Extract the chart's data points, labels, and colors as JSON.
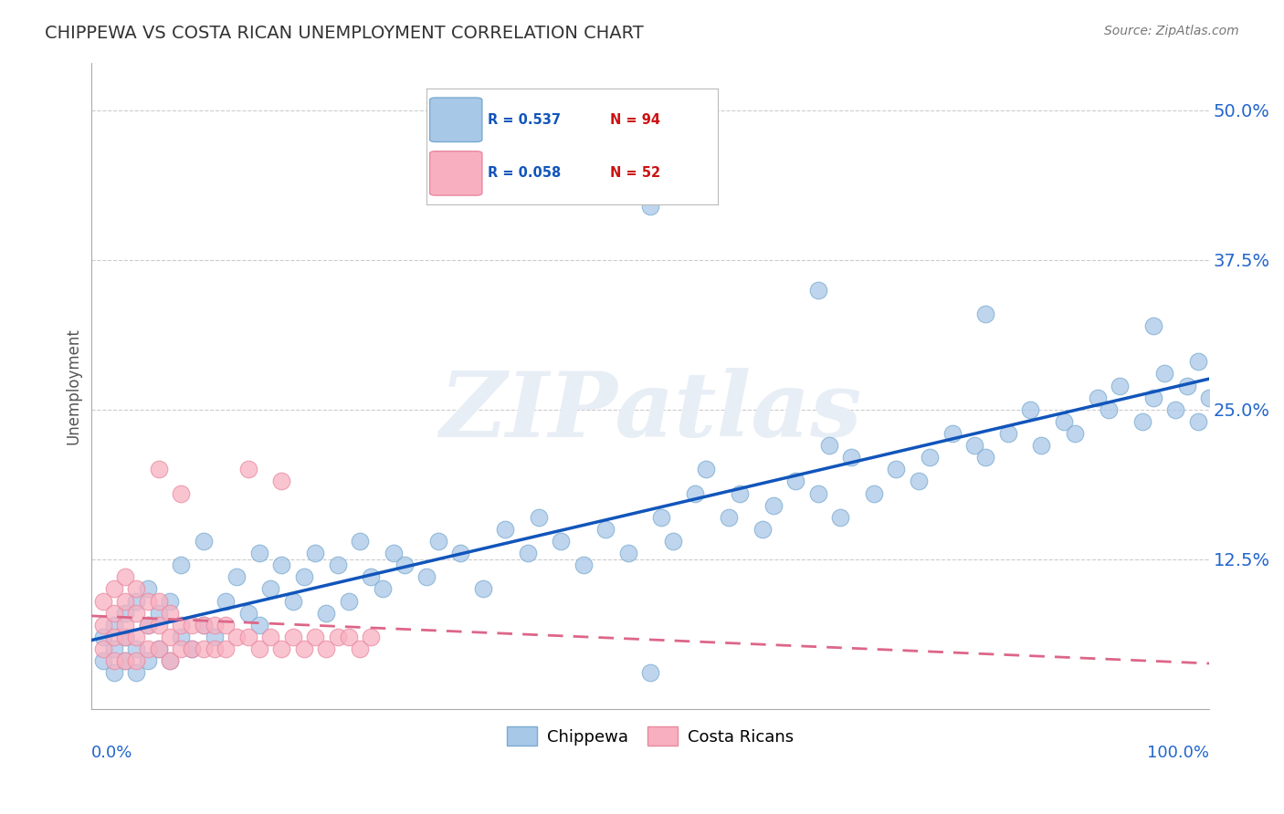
{
  "title": "CHIPPEWA VS COSTA RICAN UNEMPLOYMENT CORRELATION CHART",
  "source": "Source: ZipAtlas.com",
  "ylabel": "Unemployment",
  "chippewa_color": "#a8c8e8",
  "chippewa_edge": "#7aaad0",
  "costa_color": "#f8b0c0",
  "costa_edge": "#e888a0",
  "trend_blue": "#1155bb",
  "trend_pink": "#dd6688",
  "background": "#ffffff",
  "watermark_text": "ZIPatlas",
  "watermark_color": "#e8eef5",
  "chippewa_R": 0.537,
  "chippewa_N": 94,
  "costa_R": 0.058,
  "costa_N": 52,
  "chippewa_x": [
    0.01,
    0.01,
    0.02,
    0.02,
    0.02,
    0.03,
    0.03,
    0.03,
    0.04,
    0.04,
    0.04,
    0.05,
    0.05,
    0.05,
    0.06,
    0.06,
    0.07,
    0.07,
    0.08,
    0.08,
    0.09,
    0.1,
    0.1,
    0.11,
    0.12,
    0.13,
    0.14,
    0.15,
    0.15,
    0.16,
    0.17,
    0.18,
    0.19,
    0.2,
    0.21,
    0.22,
    0.23,
    0.24,
    0.25,
    0.26,
    0.27,
    0.28,
    0.3,
    0.31,
    0.33,
    0.35,
    0.37,
    0.39,
    0.4,
    0.42,
    0.44,
    0.46,
    0.48,
    0.5,
    0.51,
    0.52,
    0.54,
    0.55,
    0.57,
    0.58,
    0.6,
    0.61,
    0.63,
    0.65,
    0.66,
    0.67,
    0.68,
    0.7,
    0.72,
    0.74,
    0.75,
    0.77,
    0.79,
    0.8,
    0.82,
    0.84,
    0.85,
    0.87,
    0.88,
    0.9,
    0.91,
    0.92,
    0.94,
    0.95,
    0.96,
    0.97,
    0.98,
    0.99,
    0.99,
    1.0,
    0.5,
    0.65,
    0.8,
    0.95
  ],
  "chippewa_y": [
    0.04,
    0.06,
    0.03,
    0.05,
    0.07,
    0.04,
    0.06,
    0.08,
    0.03,
    0.05,
    0.09,
    0.04,
    0.07,
    0.1,
    0.05,
    0.08,
    0.04,
    0.09,
    0.06,
    0.12,
    0.05,
    0.07,
    0.14,
    0.06,
    0.09,
    0.11,
    0.08,
    0.07,
    0.13,
    0.1,
    0.12,
    0.09,
    0.11,
    0.13,
    0.08,
    0.12,
    0.09,
    0.14,
    0.11,
    0.1,
    0.13,
    0.12,
    0.11,
    0.14,
    0.13,
    0.1,
    0.15,
    0.13,
    0.16,
    0.14,
    0.12,
    0.15,
    0.13,
    0.03,
    0.16,
    0.14,
    0.18,
    0.2,
    0.16,
    0.18,
    0.15,
    0.17,
    0.19,
    0.18,
    0.22,
    0.16,
    0.21,
    0.18,
    0.2,
    0.19,
    0.21,
    0.23,
    0.22,
    0.21,
    0.23,
    0.25,
    0.22,
    0.24,
    0.23,
    0.26,
    0.25,
    0.27,
    0.24,
    0.26,
    0.28,
    0.25,
    0.27,
    0.24,
    0.29,
    0.26,
    0.42,
    0.35,
    0.33,
    0.32
  ],
  "costa_x": [
    0.01,
    0.01,
    0.01,
    0.02,
    0.02,
    0.02,
    0.02,
    0.03,
    0.03,
    0.03,
    0.03,
    0.03,
    0.04,
    0.04,
    0.04,
    0.04,
    0.05,
    0.05,
    0.05,
    0.06,
    0.06,
    0.06,
    0.07,
    0.07,
    0.07,
    0.08,
    0.08,
    0.09,
    0.09,
    0.1,
    0.1,
    0.11,
    0.11,
    0.12,
    0.12,
    0.13,
    0.14,
    0.15,
    0.16,
    0.17,
    0.18,
    0.19,
    0.2,
    0.21,
    0.22,
    0.23,
    0.24,
    0.25,
    0.17,
    0.14,
    0.08,
    0.06
  ],
  "costa_y": [
    0.05,
    0.07,
    0.09,
    0.04,
    0.06,
    0.08,
    0.1,
    0.04,
    0.06,
    0.07,
    0.09,
    0.11,
    0.04,
    0.06,
    0.08,
    0.1,
    0.05,
    0.07,
    0.09,
    0.05,
    0.07,
    0.09,
    0.04,
    0.06,
    0.08,
    0.05,
    0.07,
    0.05,
    0.07,
    0.05,
    0.07,
    0.05,
    0.07,
    0.05,
    0.07,
    0.06,
    0.06,
    0.05,
    0.06,
    0.05,
    0.06,
    0.05,
    0.06,
    0.05,
    0.06,
    0.06,
    0.05,
    0.06,
    0.19,
    0.2,
    0.18,
    0.2
  ],
  "ytick_vals": [
    0.0,
    0.125,
    0.25,
    0.375,
    0.5
  ],
  "ytick_labels": [
    "",
    "12.5%",
    "25.0%",
    "37.5%",
    "50.0%"
  ],
  "ylim": [
    0.0,
    0.54
  ],
  "xlim": [
    0.0,
    1.0
  ],
  "legend_R_color": "#1155bb",
  "legend_N_color": "#cc1111",
  "tick_color": "#2266cc"
}
